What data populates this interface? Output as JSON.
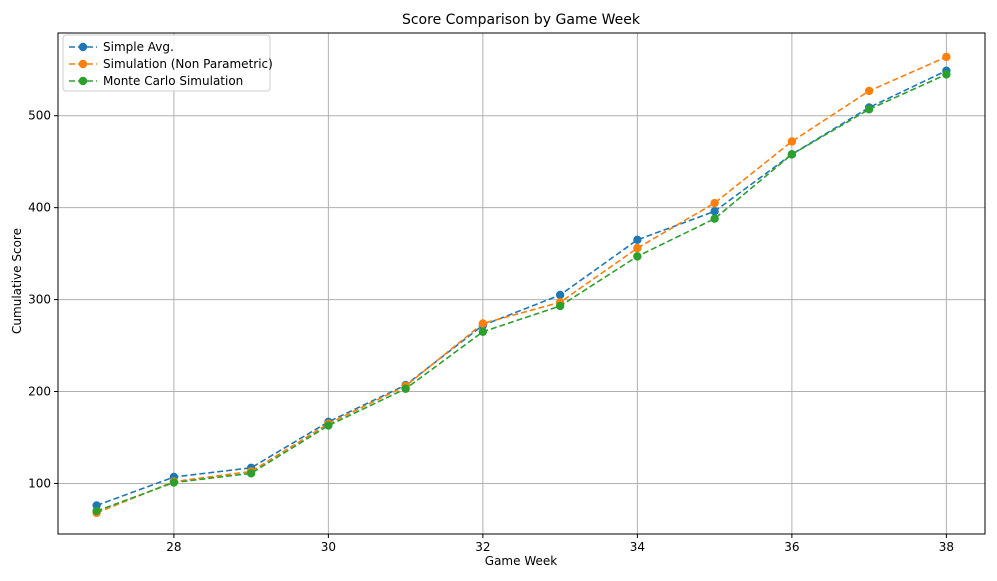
{
  "chart_data": {
    "type": "line",
    "title": "Score Comparison by Game Week",
    "xlabel": "Game Week",
    "ylabel": "Cumulative Score",
    "x": [
      27,
      28,
      29,
      30,
      31,
      32,
      33,
      34,
      35,
      36,
      37,
      38
    ],
    "xlim": [
      26.5,
      38.5
    ],
    "ylim": [
      45,
      590
    ],
    "xticks": [
      28,
      30,
      32,
      34,
      36,
      38
    ],
    "yticks": [
      100,
      200,
      300,
      400,
      500
    ],
    "grid": true,
    "legend_position": "top-left",
    "series": [
      {
        "name": "Simple Avg.",
        "color": "#1f77b4",
        "values": [
          76,
          107,
          117,
          167,
          207,
          272,
          305,
          365,
          396,
          458,
          509,
          549
        ]
      },
      {
        "name": "Simulation (Non Parametric)",
        "color": "#ff7f0e",
        "values": [
          68,
          102,
          113,
          165,
          206,
          274,
          297,
          356,
          405,
          472,
          527,
          564
        ]
      },
      {
        "name": "Monte Carlo Simulation",
        "color": "#2ca02c",
        "values": [
          70,
          101,
          111,
          163,
          203,
          265,
          293,
          347,
          388,
          458,
          507,
          545
        ]
      }
    ]
  }
}
